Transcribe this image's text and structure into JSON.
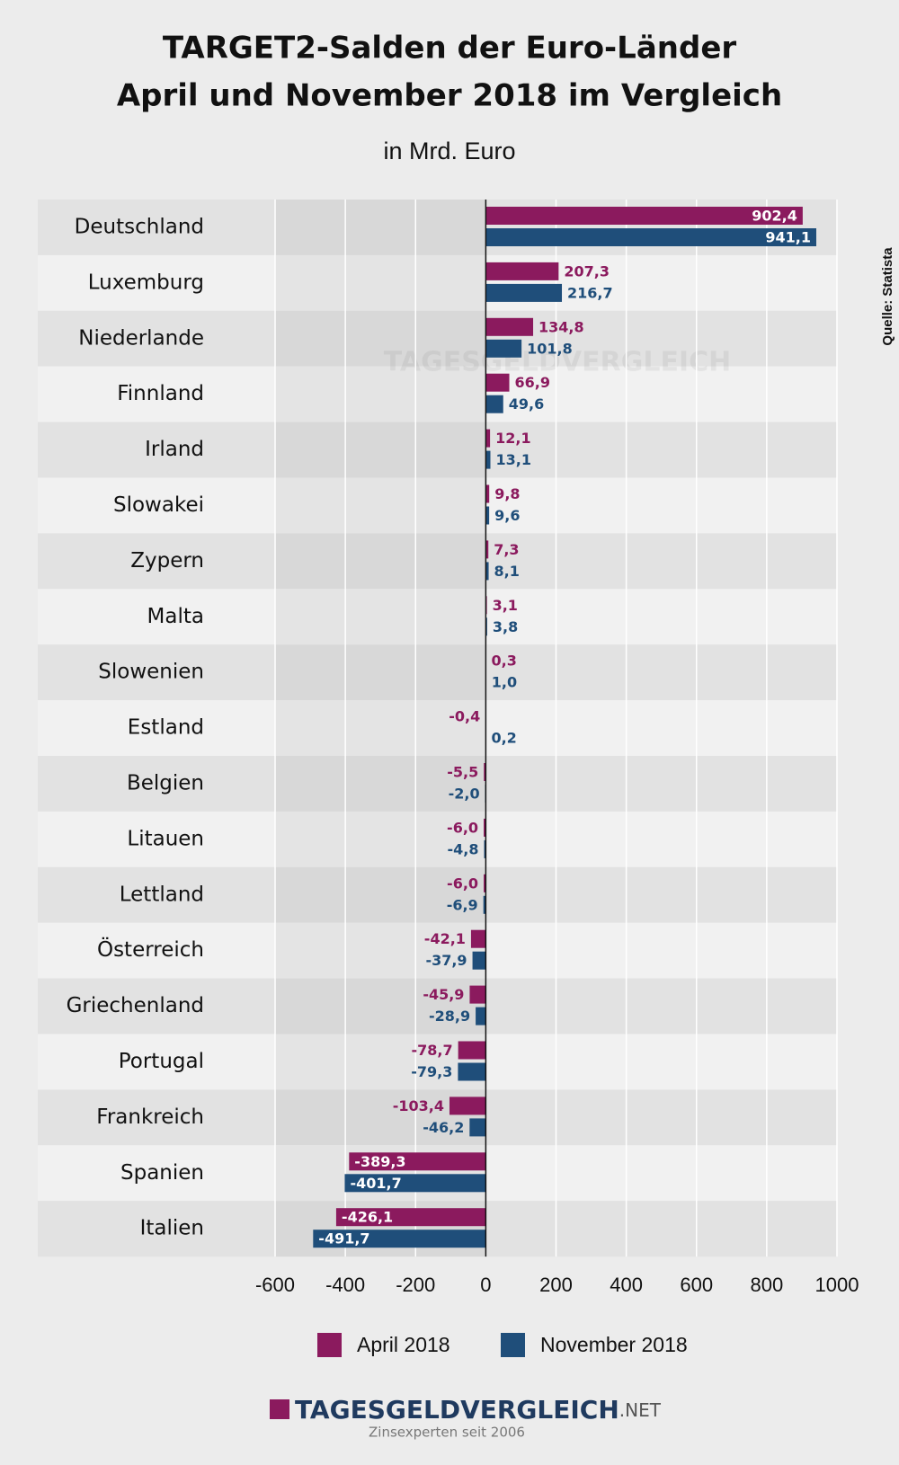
{
  "chart_data": {
    "type": "bar",
    "orientation": "horizontal",
    "title": [
      "TARGET2-Salden der Euro-Länder",
      "April und November 2018 im Vergleich"
    ],
    "subtitle": "in Mrd. Euro",
    "source": "Quelle: Statista",
    "categories": [
      "Deutschland",
      "Luxemburg",
      "Niederlande",
      "Finnland",
      "Irland",
      "Slowakei",
      "Zypern",
      "Malta",
      "Slowenien",
      "Estland",
      "Belgien",
      "Litauen",
      "Lettland",
      "Österreich",
      "Griechenland",
      "Portugal",
      "Frankreich",
      "Spanien",
      "Italien"
    ],
    "series": [
      {
        "name": "April 2018",
        "color": "#8b1a5e",
        "values": [
          902.4,
          207.3,
          134.8,
          66.9,
          12.1,
          9.8,
          7.3,
          3.1,
          0.3,
          -0.4,
          -5.5,
          -6.0,
          -6.0,
          -42.1,
          -45.9,
          -78.7,
          -103.4,
          -389.3,
          -426.1
        ],
        "value_labels": [
          "902,4",
          "207,3",
          "134,8",
          "66,9",
          "12,1",
          "9,8",
          "7,3",
          "3,1",
          "0,3",
          "-0,4",
          "-5,5",
          "-6,0",
          "-6,0",
          "-42,1",
          "-45,9",
          "-78,7",
          "-103,4",
          "-389,3",
          "-426,1"
        ]
      },
      {
        "name": "November 2018",
        "color": "#1f4e7a",
        "values": [
          941.1,
          216.7,
          101.8,
          49.6,
          13.1,
          9.6,
          8.1,
          3.8,
          1.0,
          0.2,
          -2.0,
          -4.8,
          -6.9,
          -37.9,
          -28.9,
          -79.3,
          -46.2,
          -401.7,
          -491.7
        ],
        "value_labels": [
          "941,1",
          "216,7",
          "101,8",
          "49,6",
          "13,1",
          "9,6",
          "8,1",
          "3,8",
          "1,0",
          "0,2",
          "-2,0",
          "-4,8",
          "-6,9",
          "-37,9",
          "-28,9",
          "-79,3",
          "-46,2",
          "-401,7",
          "-491,7"
        ]
      }
    ],
    "xlim": [
      -600,
      1000
    ],
    "xticks": [
      -600,
      -400,
      -200,
      0,
      200,
      400,
      600,
      800,
      1000
    ],
    "grid": true,
    "legend": "bottom",
    "logo": {
      "name": "TAGESGELDVERGLEICH",
      "suffix": ".NET",
      "tagline": "Zinsexperten seit 2006"
    }
  }
}
